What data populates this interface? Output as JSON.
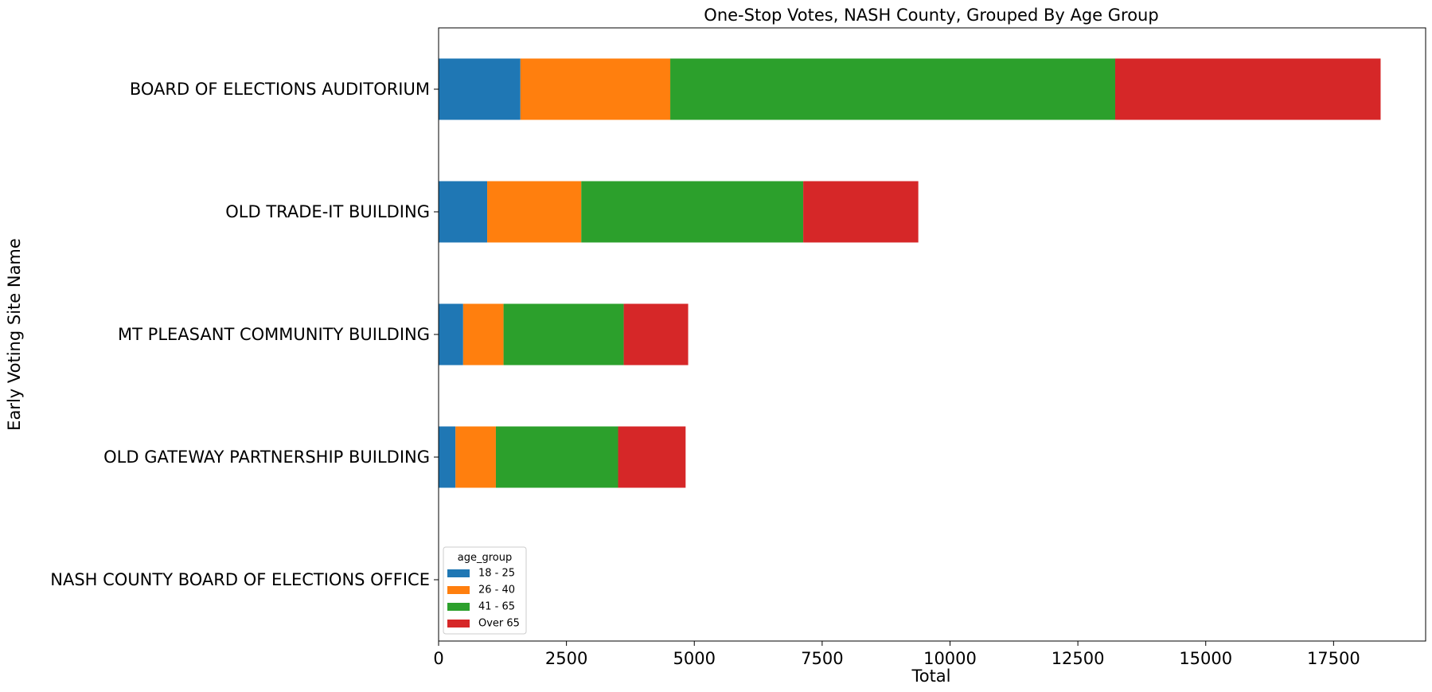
{
  "chart_data": {
    "type": "bar",
    "orientation": "horizontal",
    "stacked": true,
    "title": "One-Stop Votes, NASH County, Grouped By Age Group",
    "xlabel": "Total",
    "ylabel": "Early Voting Site Name",
    "xlim": [
      0,
      19300
    ],
    "xticks": [
      0,
      2500,
      5000,
      7500,
      10000,
      12500,
      15000,
      17500
    ],
    "categories": [
      "BOARD OF ELECTIONS AUDITORIUM",
      "OLD TRADE-IT BUILDING",
      "MT PLEASANT COMMUNITY BUILDING",
      "OLD GATEWAY PARTNERSHIP BUILDING",
      "NASH COUNTY BOARD OF ELECTIONS OFFICE"
    ],
    "series": [
      {
        "name": "18 - 25",
        "color": "#1f77b4",
        "values": [
          1600,
          950,
          480,
          330,
          0
        ]
      },
      {
        "name": "26 - 40",
        "color": "#ff7f0e",
        "values": [
          2930,
          1840,
          790,
          790,
          0
        ]
      },
      {
        "name": "41 - 65",
        "color": "#2ca02c",
        "values": [
          8700,
          4340,
          2350,
          2390,
          0
        ]
      },
      {
        "name": "Over 65",
        "color": "#d62728",
        "values": [
          5190,
          2250,
          1260,
          1320,
          4
        ]
      }
    ],
    "legend": {
      "title": "age_group",
      "position": "lower-left"
    },
    "grid": false
  }
}
